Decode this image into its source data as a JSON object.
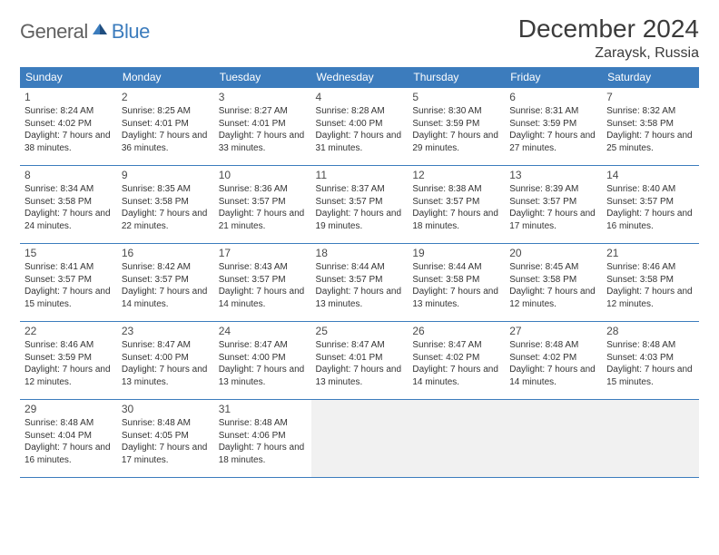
{
  "logo": {
    "text1": "General",
    "text2": "Blue"
  },
  "title": "December 2024",
  "location": "Zaraysk, Russia",
  "day_headers": [
    "Sunday",
    "Monday",
    "Tuesday",
    "Wednesday",
    "Thursday",
    "Friday",
    "Saturday"
  ],
  "colors": {
    "header_bg": "#3c7cbd",
    "header_text": "#ffffff",
    "border": "#3c7cbd",
    "logo_gray": "#616161",
    "logo_blue": "#3c7cbd",
    "empty_bg": "#f1f1f1",
    "text": "#333333"
  },
  "days": [
    {
      "n": "1",
      "sunrise": "8:24 AM",
      "sunset": "4:02 PM",
      "daylight": "7 hours and 38 minutes."
    },
    {
      "n": "2",
      "sunrise": "8:25 AM",
      "sunset": "4:01 PM",
      "daylight": "7 hours and 36 minutes."
    },
    {
      "n": "3",
      "sunrise": "8:27 AM",
      "sunset": "4:01 PM",
      "daylight": "7 hours and 33 minutes."
    },
    {
      "n": "4",
      "sunrise": "8:28 AM",
      "sunset": "4:00 PM",
      "daylight": "7 hours and 31 minutes."
    },
    {
      "n": "5",
      "sunrise": "8:30 AM",
      "sunset": "3:59 PM",
      "daylight": "7 hours and 29 minutes."
    },
    {
      "n": "6",
      "sunrise": "8:31 AM",
      "sunset": "3:59 PM",
      "daylight": "7 hours and 27 minutes."
    },
    {
      "n": "7",
      "sunrise": "8:32 AM",
      "sunset": "3:58 PM",
      "daylight": "7 hours and 25 minutes."
    },
    {
      "n": "8",
      "sunrise": "8:34 AM",
      "sunset": "3:58 PM",
      "daylight": "7 hours and 24 minutes."
    },
    {
      "n": "9",
      "sunrise": "8:35 AM",
      "sunset": "3:58 PM",
      "daylight": "7 hours and 22 minutes."
    },
    {
      "n": "10",
      "sunrise": "8:36 AM",
      "sunset": "3:57 PM",
      "daylight": "7 hours and 21 minutes."
    },
    {
      "n": "11",
      "sunrise": "8:37 AM",
      "sunset": "3:57 PM",
      "daylight": "7 hours and 19 minutes."
    },
    {
      "n": "12",
      "sunrise": "8:38 AM",
      "sunset": "3:57 PM",
      "daylight": "7 hours and 18 minutes."
    },
    {
      "n": "13",
      "sunrise": "8:39 AM",
      "sunset": "3:57 PM",
      "daylight": "7 hours and 17 minutes."
    },
    {
      "n": "14",
      "sunrise": "8:40 AM",
      "sunset": "3:57 PM",
      "daylight": "7 hours and 16 minutes."
    },
    {
      "n": "15",
      "sunrise": "8:41 AM",
      "sunset": "3:57 PM",
      "daylight": "7 hours and 15 minutes."
    },
    {
      "n": "16",
      "sunrise": "8:42 AM",
      "sunset": "3:57 PM",
      "daylight": "7 hours and 14 minutes."
    },
    {
      "n": "17",
      "sunrise": "8:43 AM",
      "sunset": "3:57 PM",
      "daylight": "7 hours and 14 minutes."
    },
    {
      "n": "18",
      "sunrise": "8:44 AM",
      "sunset": "3:57 PM",
      "daylight": "7 hours and 13 minutes."
    },
    {
      "n": "19",
      "sunrise": "8:44 AM",
      "sunset": "3:58 PM",
      "daylight": "7 hours and 13 minutes."
    },
    {
      "n": "20",
      "sunrise": "8:45 AM",
      "sunset": "3:58 PM",
      "daylight": "7 hours and 12 minutes."
    },
    {
      "n": "21",
      "sunrise": "8:46 AM",
      "sunset": "3:58 PM",
      "daylight": "7 hours and 12 minutes."
    },
    {
      "n": "22",
      "sunrise": "8:46 AM",
      "sunset": "3:59 PM",
      "daylight": "7 hours and 12 minutes."
    },
    {
      "n": "23",
      "sunrise": "8:47 AM",
      "sunset": "4:00 PM",
      "daylight": "7 hours and 13 minutes."
    },
    {
      "n": "24",
      "sunrise": "8:47 AM",
      "sunset": "4:00 PM",
      "daylight": "7 hours and 13 minutes."
    },
    {
      "n": "25",
      "sunrise": "8:47 AM",
      "sunset": "4:01 PM",
      "daylight": "7 hours and 13 minutes."
    },
    {
      "n": "26",
      "sunrise": "8:47 AM",
      "sunset": "4:02 PM",
      "daylight": "7 hours and 14 minutes."
    },
    {
      "n": "27",
      "sunrise": "8:48 AM",
      "sunset": "4:02 PM",
      "daylight": "7 hours and 14 minutes."
    },
    {
      "n": "28",
      "sunrise": "8:48 AM",
      "sunset": "4:03 PM",
      "daylight": "7 hours and 15 minutes."
    },
    {
      "n": "29",
      "sunrise": "8:48 AM",
      "sunset": "4:04 PM",
      "daylight": "7 hours and 16 minutes."
    },
    {
      "n": "30",
      "sunrise": "8:48 AM",
      "sunset": "4:05 PM",
      "daylight": "7 hours and 17 minutes."
    },
    {
      "n": "31",
      "sunrise": "8:48 AM",
      "sunset": "4:06 PM",
      "daylight": "7 hours and 18 minutes."
    }
  ],
  "grid": {
    "cols": 7,
    "rows": 5,
    "start_col": 0,
    "total_cells": 35
  }
}
